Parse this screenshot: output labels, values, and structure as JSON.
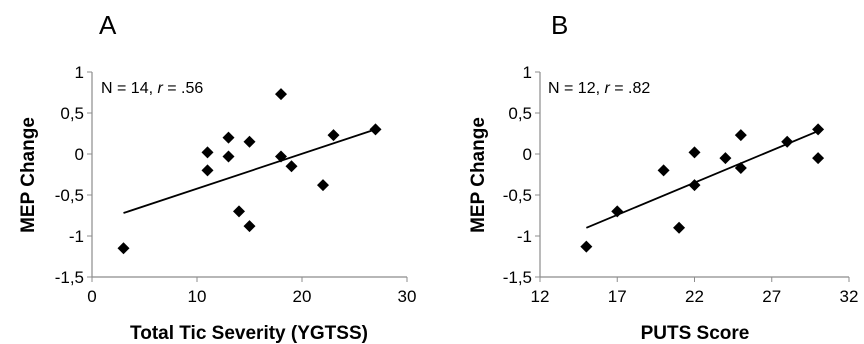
{
  "chart_data": [
    {
      "type": "scatter",
      "panel_label": "A",
      "annotation": {
        "prefix": "N = 14, ",
        "italic": "r",
        "suffix": " = .56"
      },
      "xlabel": "Total Tic Severity (YGTSS)",
      "ylabel": "MEP Change",
      "xlim": [
        0,
        30
      ],
      "ylim": [
        -1.5,
        1
      ],
      "xticks": [
        0,
        10,
        20,
        30
      ],
      "xtick_labels": [
        "0",
        "10",
        "20",
        "30"
      ],
      "yticks": [
        1,
        0.5,
        0,
        -0.5,
        -1,
        -1.5
      ],
      "ytick_labels": [
        "1",
        "0,5",
        "0",
        "-0,5",
        "-1",
        "-1,5"
      ],
      "grid": false,
      "marker_color": "#000000",
      "points": [
        {
          "x": 3,
          "y": -1.15
        },
        {
          "x": 11,
          "y": 0.02
        },
        {
          "x": 11,
          "y": -0.2
        },
        {
          "x": 13,
          "y": 0.2
        },
        {
          "x": 13,
          "y": -0.03
        },
        {
          "x": 14,
          "y": -0.7
        },
        {
          "x": 15,
          "y": 0.15
        },
        {
          "x": 15,
          "y": -0.88
        },
        {
          "x": 18,
          "y": 0.73
        },
        {
          "x": 18,
          "y": -0.03
        },
        {
          "x": 19,
          "y": -0.15
        },
        {
          "x": 22,
          "y": -0.38
        },
        {
          "x": 23,
          "y": 0.23
        },
        {
          "x": 27,
          "y": 0.3
        }
      ],
      "trendline": {
        "x": [
          3,
          27
        ],
        "y": [
          -0.72,
          0.3
        ]
      }
    },
    {
      "type": "scatter",
      "panel_label": "B",
      "annotation": {
        "prefix": "N = 12, ",
        "italic": "r",
        "suffix": " = .82"
      },
      "xlabel": "PUTS Score",
      "ylabel": "MEP Change",
      "xlim": [
        12,
        32
      ],
      "ylim": [
        -1.5,
        1
      ],
      "xticks": [
        12,
        17,
        22,
        27,
        32
      ],
      "xtick_labels": [
        "12",
        "17",
        "22",
        "27",
        "32"
      ],
      "yticks": [
        1,
        0.5,
        0,
        -0.5,
        -1,
        -1.5
      ],
      "ytick_labels": [
        "1",
        "0,5",
        "0",
        "-0,5",
        "-1",
        "-1,5"
      ],
      "grid": false,
      "marker_color": "#000000",
      "points": [
        {
          "x": 15,
          "y": -1.13
        },
        {
          "x": 17,
          "y": -0.7
        },
        {
          "x": 20,
          "y": -0.2
        },
        {
          "x": 21,
          "y": -0.9
        },
        {
          "x": 22,
          "y": 0.02
        },
        {
          "x": 22,
          "y": -0.38
        },
        {
          "x": 24,
          "y": -0.05
        },
        {
          "x": 25,
          "y": 0.23
        },
        {
          "x": 25,
          "y": -0.17
        },
        {
          "x": 28,
          "y": 0.15
        },
        {
          "x": 30,
          "y": 0.3
        },
        {
          "x": 30,
          "y": -0.05
        }
      ],
      "trendline": {
        "x": [
          15,
          30
        ],
        "y": [
          -0.9,
          0.28
        ]
      }
    }
  ]
}
